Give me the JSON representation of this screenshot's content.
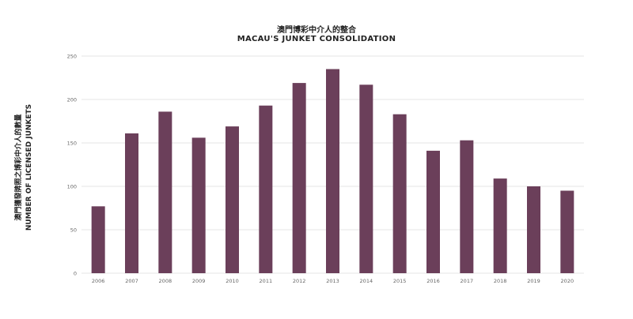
{
  "chart_data": {
    "type": "bar",
    "title": "澳門博彩中介人的整合",
    "subtitle": "MACAU'S JUNKET CONSOLIDATION",
    "ylabel_zh": "澳門獲發牌照之博彩中介人的數量",
    "ylabel": "NUMBER OF LICENSED JUNKETS",
    "xlabel": "",
    "categories": [
      "2006",
      "2007",
      "2008",
      "2009",
      "2010",
      "2011",
      "2012",
      "2013",
      "2014",
      "2015",
      "2016",
      "2017",
      "2018",
      "2019",
      "2020"
    ],
    "values": [
      77,
      161,
      186,
      156,
      169,
      193,
      219,
      235,
      217,
      183,
      141,
      153,
      109,
      100,
      95
    ],
    "ylim": [
      0,
      250
    ],
    "yticks": [
      0,
      50,
      100,
      150,
      200,
      250
    ],
    "grid": true,
    "bar_color": "#6b3f5a",
    "legend": "none"
  }
}
